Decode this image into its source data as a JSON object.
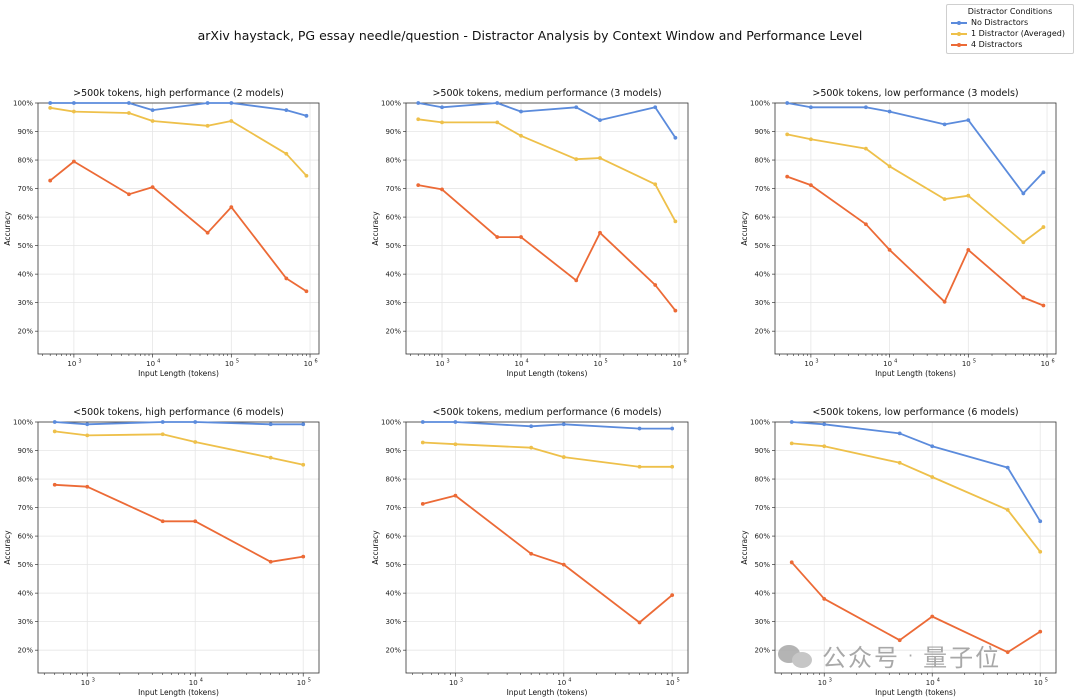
{
  "title": "arXiv haystack, PG essay needle/question - Distractor Analysis by Context Window and Performance Level",
  "legend": {
    "title": "Distractor Conditions",
    "entries": [
      {
        "label": "No Distractors",
        "color": "#5b8bdc"
      },
      {
        "label": "1 Distractor (Averaged)",
        "color": "#eec04a"
      },
      {
        "label": "4 Distractors",
        "color": "#ec6a36"
      }
    ]
  },
  "watermark": {
    "left": "公众号",
    "dot": "·",
    "right": "量子位"
  },
  "chart_data": [
    {
      "type": "line",
      "title": ">500k tokens, high performance (2 models)",
      "xlabel": "Input Length (tokens)",
      "ylabel": "Accuracy",
      "xscale": "log",
      "xlim": [
        350,
        1300000
      ],
      "ylim": [
        0.12,
        1.0
      ],
      "xticks": [
        {
          "value": 1000,
          "base": "10",
          "exp": "3"
        },
        {
          "value": 10000,
          "base": "10",
          "exp": "4"
        },
        {
          "value": 100000,
          "base": "10",
          "exp": "5"
        },
        {
          "value": 1000000,
          "base": "10",
          "exp": "6"
        }
      ],
      "yticks": [
        {
          "value": 0.2,
          "label": "20%"
        },
        {
          "value": 0.3,
          "label": "30%"
        },
        {
          "value": 0.4,
          "label": "40%"
        },
        {
          "value": 0.5,
          "label": "50%"
        },
        {
          "value": 0.6,
          "label": "60%"
        },
        {
          "value": 0.7,
          "label": "70%"
        },
        {
          "value": 0.8,
          "label": "80%"
        },
        {
          "value": 0.9,
          "label": "90%"
        },
        {
          "value": 1.0,
          "label": "100%"
        }
      ],
      "series": [
        {
          "name": "No Distractors",
          "color": "#5b8bdc",
          "x": [
            500,
            1000,
            5000,
            10000,
            50000,
            100000,
            500000,
            900000
          ],
          "y": [
            1.0,
            1.0,
            1.0,
            0.975,
            1.0,
            1.0,
            0.975,
            0.955
          ]
        },
        {
          "name": "1 Distractor (Averaged)",
          "color": "#eec04a",
          "x": [
            500,
            1000,
            5000,
            10000,
            50000,
            100000,
            500000,
            900000
          ],
          "y": [
            0.983,
            0.97,
            0.965,
            0.937,
            0.92,
            0.937,
            0.822,
            0.745
          ]
        },
        {
          "name": "4 Distractors",
          "color": "#ec6a36",
          "x": [
            500,
            1000,
            5000,
            10000,
            50000,
            100000,
            500000,
            900000
          ],
          "y": [
            0.728,
            0.795,
            0.68,
            0.705,
            0.545,
            0.635,
            0.385,
            0.34
          ]
        }
      ]
    },
    {
      "type": "line",
      "title": ">500k tokens, medium performance (3 models)",
      "xlabel": "Input Length (tokens)",
      "ylabel": "Accuracy",
      "xscale": "log",
      "xlim": [
        350,
        1300000
      ],
      "ylim": [
        0.12,
        1.0
      ],
      "xticks": [
        {
          "value": 1000,
          "base": "10",
          "exp": "3"
        },
        {
          "value": 10000,
          "base": "10",
          "exp": "4"
        },
        {
          "value": 100000,
          "base": "10",
          "exp": "5"
        },
        {
          "value": 1000000,
          "base": "10",
          "exp": "6"
        }
      ],
      "yticks": [
        {
          "value": 0.2,
          "label": "20%"
        },
        {
          "value": 0.3,
          "label": "30%"
        },
        {
          "value": 0.4,
          "label": "40%"
        },
        {
          "value": 0.5,
          "label": "50%"
        },
        {
          "value": 0.6,
          "label": "60%"
        },
        {
          "value": 0.7,
          "label": "70%"
        },
        {
          "value": 0.8,
          "label": "80%"
        },
        {
          "value": 0.9,
          "label": "90%"
        },
        {
          "value": 1.0,
          "label": "100%"
        }
      ],
      "series": [
        {
          "name": "No Distractors",
          "color": "#5b8bdc",
          "x": [
            500,
            1000,
            5000,
            10000,
            50000,
            100000,
            500000,
            900000
          ],
          "y": [
            1.0,
            0.985,
            1.0,
            0.97,
            0.985,
            0.94,
            0.985,
            0.878
          ]
        },
        {
          "name": "1 Distractor (Averaged)",
          "color": "#eec04a",
          "x": [
            500,
            1000,
            5000,
            10000,
            50000,
            100000,
            500000,
            900000
          ],
          "y": [
            0.943,
            0.932,
            0.932,
            0.885,
            0.803,
            0.807,
            0.715,
            0.585
          ]
        },
        {
          "name": "4 Distractors",
          "color": "#ec6a36",
          "x": [
            500,
            1000,
            5000,
            10000,
            50000,
            100000,
            500000,
            900000
          ],
          "y": [
            0.712,
            0.697,
            0.53,
            0.53,
            0.378,
            0.545,
            0.362,
            0.272
          ]
        }
      ]
    },
    {
      "type": "line",
      "title": ">500k tokens, low performance (3 models)",
      "xlabel": "Input Length (tokens)",
      "ylabel": "Accuracy",
      "xscale": "log",
      "xlim": [
        350,
        1300000
      ],
      "ylim": [
        0.12,
        1.0
      ],
      "xticks": [
        {
          "value": 1000,
          "base": "10",
          "exp": "3"
        },
        {
          "value": 10000,
          "base": "10",
          "exp": "4"
        },
        {
          "value": 100000,
          "base": "10",
          "exp": "5"
        },
        {
          "value": 1000000,
          "base": "10",
          "exp": "6"
        }
      ],
      "yticks": [
        {
          "value": 0.2,
          "label": "20%"
        },
        {
          "value": 0.3,
          "label": "30%"
        },
        {
          "value": 0.4,
          "label": "40%"
        },
        {
          "value": 0.5,
          "label": "50%"
        },
        {
          "value": 0.6,
          "label": "60%"
        },
        {
          "value": 0.7,
          "label": "70%"
        },
        {
          "value": 0.8,
          "label": "80%"
        },
        {
          "value": 0.9,
          "label": "90%"
        },
        {
          "value": 1.0,
          "label": "100%"
        }
      ],
      "series": [
        {
          "name": "No Distractors",
          "color": "#5b8bdc",
          "x": [
            500,
            1000,
            5000,
            10000,
            50000,
            100000,
            500000,
            900000
          ],
          "y": [
            1.0,
            0.985,
            0.985,
            0.97,
            0.925,
            0.94,
            0.683,
            0.757
          ]
        },
        {
          "name": "1 Distractor (Averaged)",
          "color": "#eec04a",
          "x": [
            500,
            1000,
            5000,
            10000,
            50000,
            100000,
            500000,
            900000
          ],
          "y": [
            0.89,
            0.873,
            0.84,
            0.778,
            0.663,
            0.675,
            0.512,
            0.565
          ]
        },
        {
          "name": "4 Distractors",
          "color": "#ec6a36",
          "x": [
            500,
            1000,
            5000,
            10000,
            50000,
            100000,
            500000,
            900000
          ],
          "y": [
            0.742,
            0.712,
            0.575,
            0.485,
            0.303,
            0.485,
            0.318,
            0.29
          ]
        }
      ]
    },
    {
      "type": "line",
      "title": "<500k tokens, high performance (6 models)",
      "xlabel": "Input Length (tokens)",
      "ylabel": "Accuracy",
      "xscale": "log",
      "xlim": [
        350,
        140000
      ],
      "ylim": [
        0.12,
        1.0
      ],
      "xticks": [
        {
          "value": 1000,
          "base": "10",
          "exp": "3"
        },
        {
          "value": 10000,
          "base": "10",
          "exp": "4"
        },
        {
          "value": 100000,
          "base": "10",
          "exp": "5"
        }
      ],
      "yticks": [
        {
          "value": 0.2,
          "label": "20%"
        },
        {
          "value": 0.3,
          "label": "30%"
        },
        {
          "value": 0.4,
          "label": "40%"
        },
        {
          "value": 0.5,
          "label": "50%"
        },
        {
          "value": 0.6,
          "label": "60%"
        },
        {
          "value": 0.7,
          "label": "70%"
        },
        {
          "value": 0.8,
          "label": "80%"
        },
        {
          "value": 0.9,
          "label": "90%"
        },
        {
          "value": 1.0,
          "label": "100%"
        }
      ],
      "series": [
        {
          "name": "No Distractors",
          "color": "#5b8bdc",
          "x": [
            500,
            1000,
            5000,
            10000,
            50000,
            100000
          ],
          "y": [
            1.0,
            0.992,
            1.0,
            1.0,
            0.992,
            0.992
          ]
        },
        {
          "name": "1 Distractor (Averaged)",
          "color": "#eec04a",
          "x": [
            500,
            1000,
            5000,
            10000,
            50000,
            100000
          ],
          "y": [
            0.967,
            0.953,
            0.957,
            0.93,
            0.875,
            0.85
          ]
        },
        {
          "name": "4 Distractors",
          "color": "#ec6a36",
          "x": [
            500,
            1000,
            5000,
            10000,
            50000,
            100000
          ],
          "y": [
            0.78,
            0.773,
            0.652,
            0.652,
            0.51,
            0.528
          ]
        }
      ]
    },
    {
      "type": "line",
      "title": "<500k tokens, medium performance (6 models)",
      "xlabel": "Input Length (tokens)",
      "ylabel": "Accuracy",
      "xscale": "log",
      "xlim": [
        350,
        140000
      ],
      "ylim": [
        0.12,
        1.0
      ],
      "xticks": [
        {
          "value": 1000,
          "base": "10",
          "exp": "3"
        },
        {
          "value": 10000,
          "base": "10",
          "exp": "4"
        },
        {
          "value": 100000,
          "base": "10",
          "exp": "5"
        }
      ],
      "yticks": [
        {
          "value": 0.2,
          "label": "20%"
        },
        {
          "value": 0.3,
          "label": "30%"
        },
        {
          "value": 0.4,
          "label": "40%"
        },
        {
          "value": 0.5,
          "label": "50%"
        },
        {
          "value": 0.6,
          "label": "60%"
        },
        {
          "value": 0.7,
          "label": "70%"
        },
        {
          "value": 0.8,
          "label": "80%"
        },
        {
          "value": 0.9,
          "label": "90%"
        },
        {
          "value": 1.0,
          "label": "100%"
        }
      ],
      "series": [
        {
          "name": "No Distractors",
          "color": "#5b8bdc",
          "x": [
            500,
            1000,
            5000,
            10000,
            50000,
            100000
          ],
          "y": [
            1.0,
            1.0,
            0.985,
            0.992,
            0.977,
            0.977
          ]
        },
        {
          "name": "1 Distractor (Averaged)",
          "color": "#eec04a",
          "x": [
            500,
            1000,
            5000,
            10000,
            50000,
            100000
          ],
          "y": [
            0.928,
            0.922,
            0.91,
            0.877,
            0.843,
            0.843
          ]
        },
        {
          "name": "4 Distractors",
          "color": "#ec6a36",
          "x": [
            500,
            1000,
            5000,
            10000,
            50000,
            100000
          ],
          "y": [
            0.713,
            0.742,
            0.538,
            0.5,
            0.297,
            0.393
          ]
        }
      ]
    },
    {
      "type": "line",
      "title": "<500k tokens, low performance (6 models)",
      "xlabel": "Input Length (tokens)",
      "ylabel": "Accuracy",
      "xscale": "log",
      "xlim": [
        350,
        140000
      ],
      "ylim": [
        0.12,
        1.0
      ],
      "xticks": [
        {
          "value": 1000,
          "base": "10",
          "exp": "3"
        },
        {
          "value": 10000,
          "base": "10",
          "exp": "4"
        },
        {
          "value": 100000,
          "base": "10",
          "exp": "5"
        }
      ],
      "yticks": [
        {
          "value": 0.2,
          "label": "20%"
        },
        {
          "value": 0.3,
          "label": "30%"
        },
        {
          "value": 0.4,
          "label": "40%"
        },
        {
          "value": 0.5,
          "label": "50%"
        },
        {
          "value": 0.6,
          "label": "60%"
        },
        {
          "value": 0.7,
          "label": "70%"
        },
        {
          "value": 0.8,
          "label": "80%"
        },
        {
          "value": 0.9,
          "label": "90%"
        },
        {
          "value": 1.0,
          "label": "100%"
        }
      ],
      "series": [
        {
          "name": "No Distractors",
          "color": "#5b8bdc",
          "x": [
            500,
            1000,
            5000,
            10000,
            50000,
            100000
          ],
          "y": [
            1.0,
            0.992,
            0.96,
            0.915,
            0.84,
            0.652
          ]
        },
        {
          "name": "1 Distractor (Averaged)",
          "color": "#eec04a",
          "x": [
            500,
            1000,
            5000,
            10000,
            50000,
            100000
          ],
          "y": [
            0.925,
            0.915,
            0.857,
            0.807,
            0.692,
            0.545
          ]
        },
        {
          "name": "4 Distractors",
          "color": "#ec6a36",
          "x": [
            500,
            1000,
            5000,
            10000,
            50000,
            100000
          ],
          "y": [
            0.508,
            0.38,
            0.235,
            0.318,
            0.193,
            0.265
          ]
        }
      ]
    }
  ]
}
